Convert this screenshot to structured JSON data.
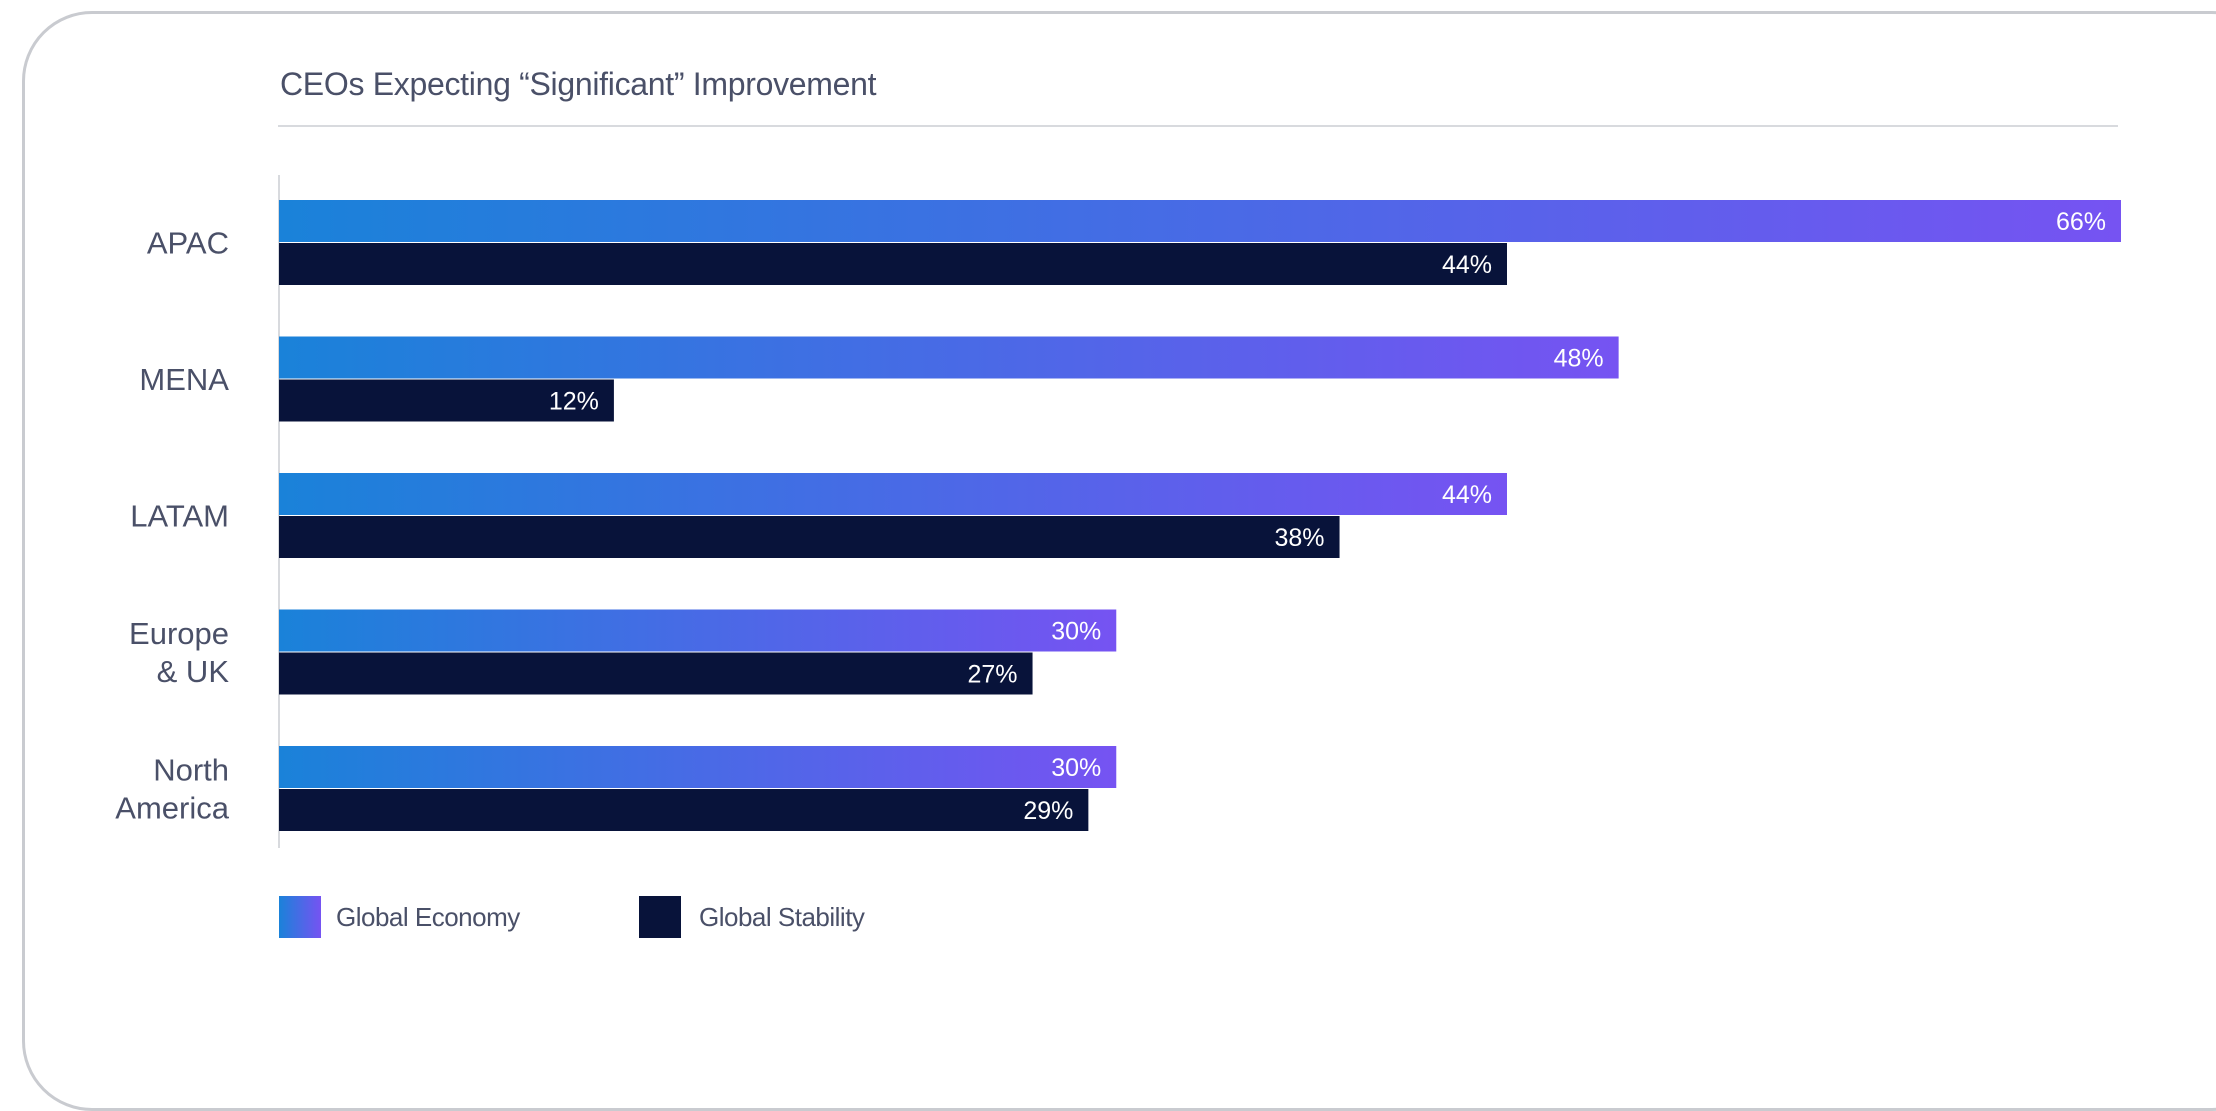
{
  "chart_data": {
    "type": "bar",
    "orientation": "horizontal",
    "title": "CEOs Expecting “Significant” Improvement",
    "categories": [
      "APAC",
      "MENA",
      "LATAM",
      "Europe\n& UK",
      "North\nAmerica"
    ],
    "series": [
      {
        "name": "Global Economy",
        "values": [
          66,
          48,
          44,
          30,
          30
        ],
        "labels": [
          "66%",
          "48%",
          "44%",
          "30%",
          "30%"
        ],
        "color_start": "#1a82d9",
        "color_end": "#7653f2"
      },
      {
        "name": "Global Stability",
        "values": [
          44,
          12,
          38,
          27,
          29
        ],
        "labels": [
          "44%",
          "12%",
          "38%",
          "27%",
          "29%"
        ],
        "color": "#08133a"
      }
    ],
    "xlim": [
      0,
      66
    ],
    "grid": false,
    "legend_position": "bottom-left"
  },
  "colors": {
    "text": "#4a5068",
    "axis": "#d8dade",
    "card_border": "#c9cbd0"
  }
}
